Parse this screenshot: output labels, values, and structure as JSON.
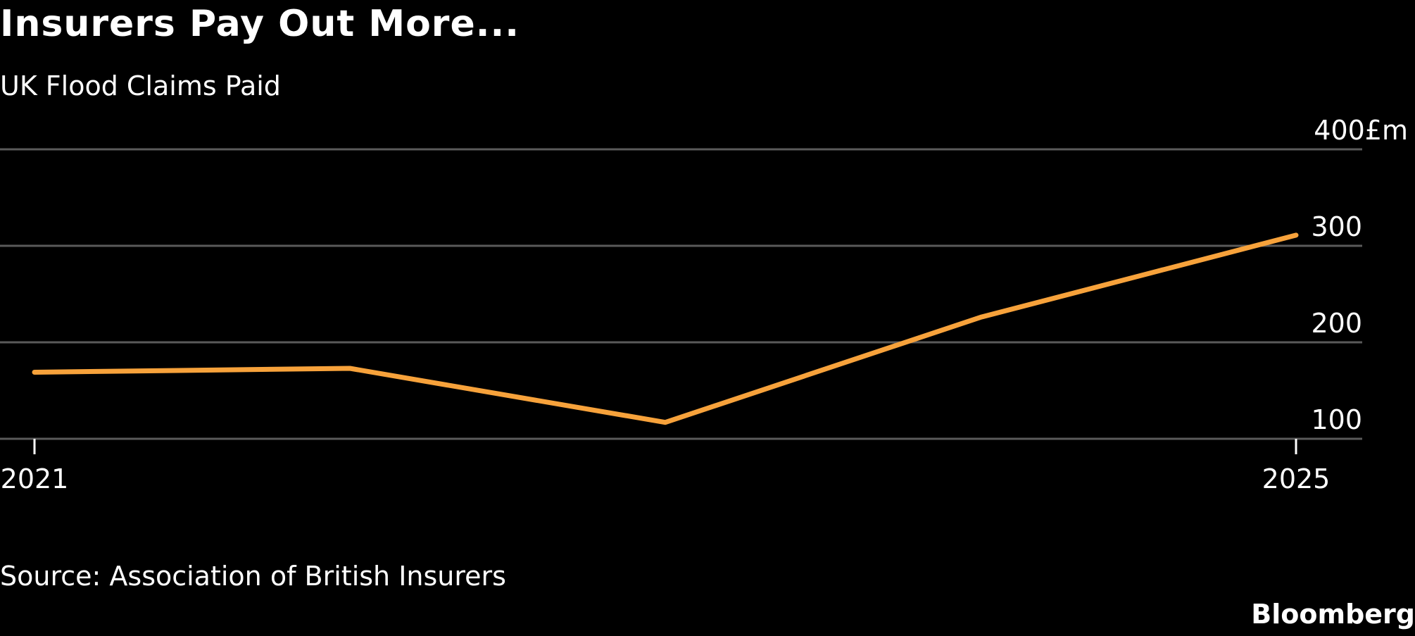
{
  "title": "Insurers Pay Out More...",
  "subtitle": "UK Flood Claims Paid",
  "source": "Source: Association of British Insurers",
  "brand": "Bloomberg",
  "colors": {
    "background": "#000000",
    "line": "#f7a23b",
    "grid": "#5a5a5a",
    "text": "#ffffff"
  },
  "chart_data": {
    "type": "line",
    "x": [
      2021,
      2022,
      2023,
      2024,
      2025
    ],
    "series": [
      {
        "values": [
          169,
          173,
          117,
          226,
          311
        ]
      }
    ],
    "x_tick_labels": [
      "2021",
      "2025"
    ],
    "y_tick_labels": [
      "400£m",
      "300",
      "200",
      "100"
    ],
    "y_ticks": [
      400,
      300,
      200,
      100
    ],
    "ylim": [
      100,
      400
    ],
    "xlim": [
      2021,
      2025
    ],
    "y_axis_side": "right",
    "grid": true,
    "legend": "none"
  }
}
